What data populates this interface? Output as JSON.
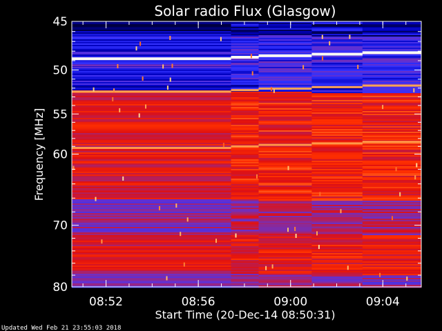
{
  "chart_data": {
    "type": "heatmap",
    "title": "Solar radio Flux (Glasgow)",
    "ylabel": "Frequency [MHz]",
    "xlabel": "Start Time (20-Dec-14 08:50:31)",
    "y_axis": {
      "min": 45,
      "max": 80,
      "scale": "log",
      "ticks": [
        45,
        50,
        55,
        60,
        70,
        80
      ],
      "tick_labels": [
        "45",
        "50",
        "55",
        "60",
        "70",
        "80"
      ]
    },
    "x_axis": {
      "start": "08:50:31",
      "end": "09:05:40",
      "tick_times": [
        "08:52",
        "08:56",
        "09:00",
        "09:04"
      ],
      "tick_minutes": [
        1.483,
        5.483,
        9.483,
        13.483
      ],
      "range_minutes": [
        0,
        15.15
      ]
    },
    "colormap": [
      "#000040",
      "#0000c0",
      "#3030ff",
      "#6a30c8",
      "#b02060",
      "#e01010",
      "#ff3000",
      "#ff9040",
      "#ffd080",
      "#ffffff"
    ],
    "emission_lines_mhz": [
      {
        "freq": 48.8,
        "level": 1.0
      },
      {
        "freq": 52.4,
        "level": 0.82
      },
      {
        "freq": 59.2,
        "level": 0.8
      },
      {
        "freq": 49.5,
        "level": 0.35
      }
    ],
    "segment_boundaries_minutes": [
      6.9,
      8.1,
      10.4,
      12.6
    ],
    "footer": "Updated Wed Feb 21 23:55:03 2018"
  }
}
